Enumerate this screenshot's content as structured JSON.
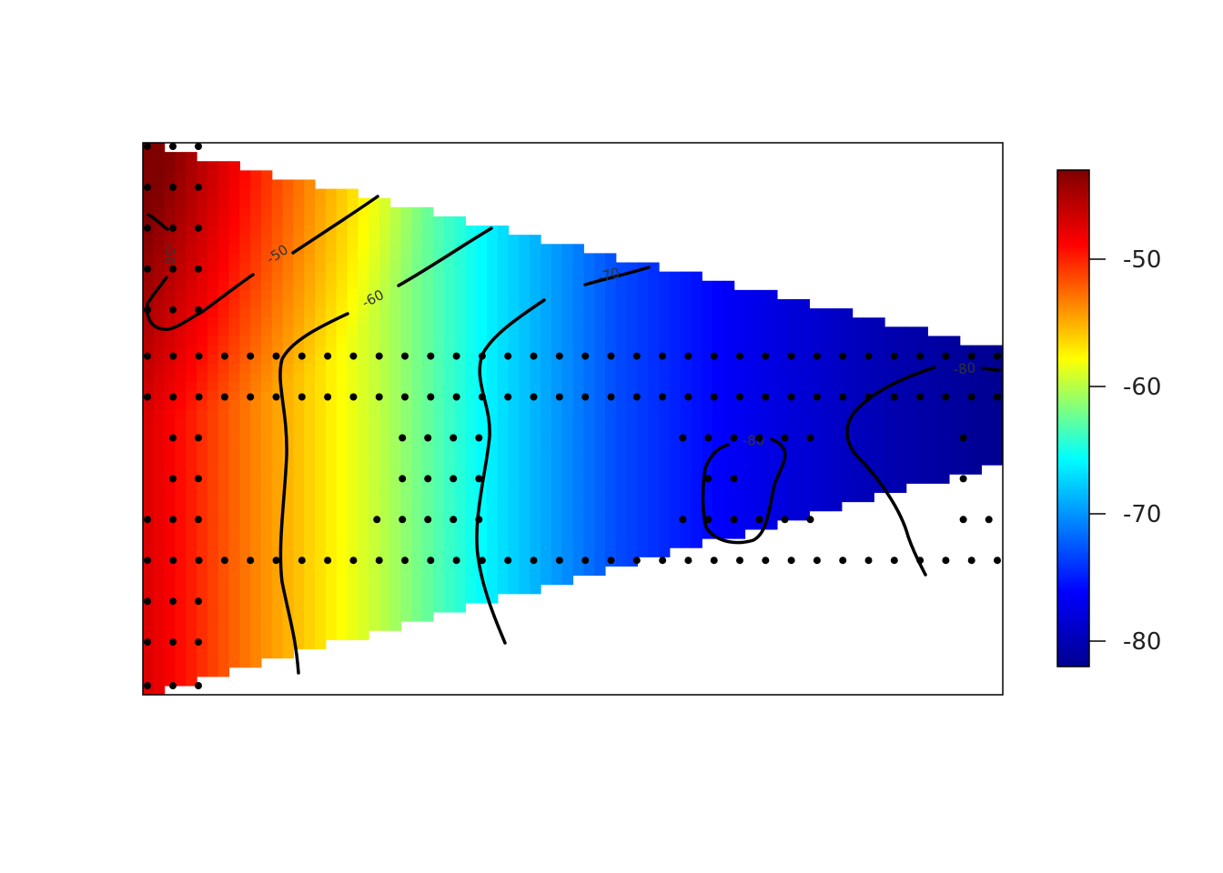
{
  "chart_data": {
    "type": "heatmap",
    "title": "",
    "xlabel": "",
    "ylabel": "",
    "description_free": true,
    "zlim": [
      -82,
      -43
    ],
    "colorbar": {
      "ticks": [
        -50,
        -60,
        -70,
        -80
      ],
      "tick_labels": [
        "-50",
        "-60",
        "-70",
        "-80"
      ],
      "palette": [
        "#00008F",
        "#0000FF",
        "#00FFFF",
        "#FFFF00",
        "#FF0000",
        "#800000"
      ],
      "placement": "right"
    },
    "contours": [
      {
        "level": -50,
        "label": "-50"
      },
      {
        "level": -50,
        "label": "-50"
      },
      {
        "level": -60,
        "label": "-60"
      },
      {
        "level": -70,
        "label": "-70"
      },
      {
        "level": -80,
        "label": "-80"
      },
      {
        "level": -80,
        "label": "-80"
      }
    ],
    "field_samples_x": [
      0.0,
      0.12,
      0.28,
      0.42,
      0.55,
      0.7,
      0.85,
      1.0
    ],
    "field_values_at_x": [
      -47,
      -53,
      -60,
      -67,
      -73,
      -77,
      -80,
      -82
    ],
    "measurement_rows": [
      {
        "y": 0.0,
        "x": [
          0.0,
          0.03,
          0.06
        ]
      },
      {
        "y": 0.075,
        "x": [
          0.0,
          0.03,
          0.06
        ]
      },
      {
        "y": 0.15,
        "x": [
          0.0,
          0.03,
          0.06
        ]
      },
      {
        "y": 0.225,
        "x": [
          0.0,
          0.03,
          0.06
        ]
      },
      {
        "y": 0.3,
        "x": [
          0.0,
          0.03,
          0.06
        ]
      },
      {
        "y": 0.385,
        "x": "all"
      },
      {
        "y": 0.46,
        "x": "all"
      },
      {
        "y": 0.535,
        "x": [
          0.03,
          0.06,
          0.3,
          0.33,
          0.36,
          0.39,
          0.63,
          0.66,
          0.69,
          0.72,
          0.75,
          0.78,
          0.96
        ]
      },
      {
        "y": 0.61,
        "x": [
          0.03,
          0.06,
          0.3,
          0.33,
          0.36,
          0.39,
          0.66,
          0.69,
          0.96
        ]
      },
      {
        "y": 0.685,
        "x": [
          0.0,
          0.03,
          0.06,
          0.27,
          0.3,
          0.33,
          0.36,
          0.39,
          0.63,
          0.66,
          0.69,
          0.72,
          0.75,
          0.78,
          0.96,
          0.99
        ]
      },
      {
        "y": 0.76,
        "x": "all"
      },
      {
        "y": 0.835,
        "x": [
          0.0,
          0.03,
          0.06
        ]
      },
      {
        "y": 0.91,
        "x": [
          0.0,
          0.03,
          0.06
        ]
      },
      {
        "y": 0.99,
        "x": [
          0.0,
          0.03,
          0.06
        ]
      }
    ]
  }
}
